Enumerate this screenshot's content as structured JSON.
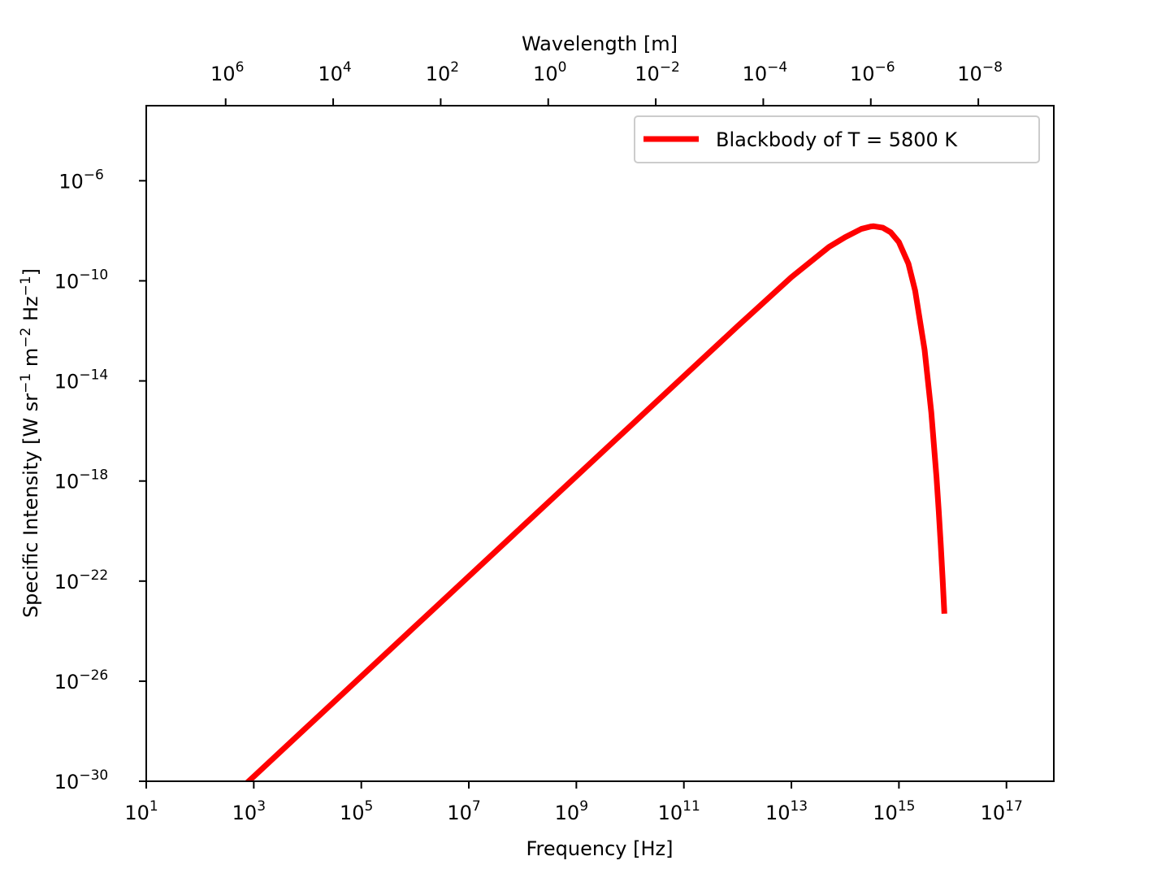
{
  "chart_data": {
    "type": "line",
    "x_scale": "log",
    "y_scale": "log",
    "xlabel": "Frequency [Hz]",
    "ylabel": "Specific Intensity [W sr^-1 m^-2 Hz^-1]",
    "top_xlabel": "Wavelength [m]",
    "xlim": [
      10,
      7.6e+17
    ],
    "ylim": [
      1e-30,
      0.001
    ],
    "x_ticks": [
      {
        "value": 10.0,
        "base": "10",
        "exp": "1"
      },
      {
        "value": 1000.0,
        "base": "10",
        "exp": "3"
      },
      {
        "value": 100000.0,
        "base": "10",
        "exp": "5"
      },
      {
        "value": 10000000.0,
        "base": "10",
        "exp": "7"
      },
      {
        "value": 1000000000.0,
        "base": "10",
        "exp": "9"
      },
      {
        "value": 100000000000.0,
        "base": "10",
        "exp": "11"
      },
      {
        "value": 10000000000000.0,
        "base": "10",
        "exp": "13"
      },
      {
        "value": 1000000000000000.0,
        "base": "10",
        "exp": "15"
      },
      {
        "value": 1e+17,
        "base": "10",
        "exp": "17"
      }
    ],
    "y_ticks": [
      {
        "value": 1e-30,
        "base": "10",
        "exp": "−30"
      },
      {
        "value": 1e-26,
        "base": "10",
        "exp": "−26"
      },
      {
        "value": 1e-22,
        "base": "10",
        "exp": "−22"
      },
      {
        "value": 1e-18,
        "base": "10",
        "exp": "−18"
      },
      {
        "value": 1e-14,
        "base": "10",
        "exp": "−14"
      },
      {
        "value": 1e-10,
        "base": "10",
        "exp": "−10"
      },
      {
        "value": 1e-06,
        "base": "10",
        "exp": "−6"
      }
    ],
    "top_ticks": [
      {
        "value": 1000000.0,
        "base": "10",
        "exp": "6"
      },
      {
        "value": 10000.0,
        "base": "10",
        "exp": "4"
      },
      {
        "value": 100.0,
        "base": "10",
        "exp": "2"
      },
      {
        "value": 1.0,
        "base": "10",
        "exp": "0"
      },
      {
        "value": 0.01,
        "base": "10",
        "exp": "−2"
      },
      {
        "value": 0.0001,
        "base": "10",
        "exp": "−4"
      },
      {
        "value": 1e-06,
        "base": "10",
        "exp": "−6"
      },
      {
        "value": 1e-08,
        "base": "10",
        "exp": "−8"
      }
    ],
    "series": [
      {
        "name": "Blackbody of T = 5800 K",
        "color": "#ff0000",
        "x": [
          600,
          1000.0,
          10000.0,
          100000.0,
          1000000.0,
          10000000.0,
          100000000.0,
          1000000000.0,
          10000000000.0,
          100000000000.0,
          1000000000000.0,
          10000000000000.0,
          50000000000000.0,
          100000000000000.0,
          200000000000000.0,
          300000000000000.0,
          340000000000000.0,
          500000000000000.0,
          700000000000000.0,
          1000000000000000.0,
          1500000000000000.0,
          2000000000000000.0,
          3000000000000000.0,
          4000000000000000.0,
          5000000000000000.0,
          5500000000000000.0,
          6000000000000000.0,
          6500000000000000.0,
          7000000000000000.0
        ],
        "y": [
          5.6e-31,
          1.55e-30,
          1.55e-28,
          1.55e-26,
          1.55e-24,
          1.55e-22,
          1.55e-20,
          1.55e-18,
          1.55e-16,
          1.55e-14,
          1.54e-12,
          1.4e-10,
          2.26e-09,
          5.57e-09,
          1.19e-08,
          1.48e-08,
          1.52e-08,
          1.33e-08,
          8.75e-09,
          3.5e-09,
          4.87e-10,
          4.1e-11,
          1.77e-13,
          5.46e-16,
          1.4e-18,
          6.3e-20,
          2.8e-21,
          1.2e-22,
          4.98e-24
        ]
      }
    ]
  }
}
